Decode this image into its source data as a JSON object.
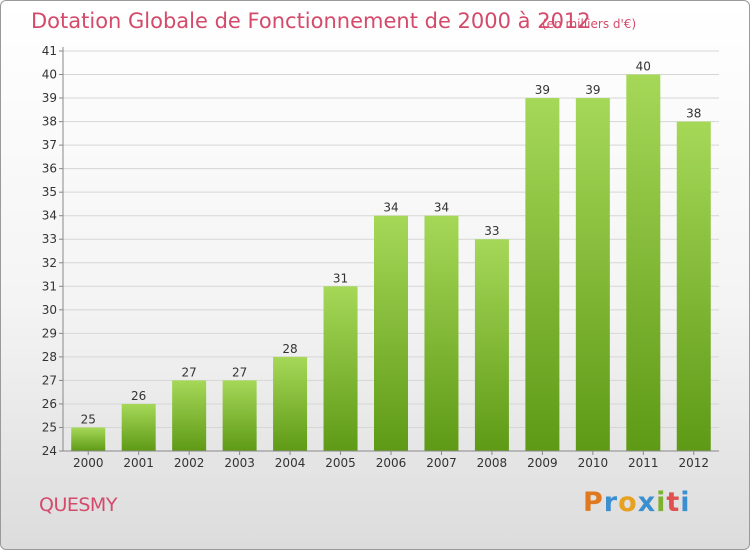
{
  "title": "Dotation Globale de Fonctionnement de 2000 à 2012",
  "unit_label": "(en milliers d'€)",
  "commune": "QUESMY",
  "logo": {
    "text": "Proxiti",
    "colors": [
      "#e07820",
      "#3a8fd0",
      "#e8a020",
      "#3a8fd0",
      "#7bb32e",
      "#e05050",
      "#3a8fd0"
    ]
  },
  "colors": {
    "bar_light": "#a6d858",
    "bar_dark": "#5e9a16",
    "title": "#d44a6a"
  },
  "chart_data": {
    "type": "bar",
    "categories": [
      "2000",
      "2001",
      "2002",
      "2003",
      "2004",
      "2005",
      "2006",
      "2007",
      "2008",
      "2009",
      "2010",
      "2011",
      "2012"
    ],
    "values": [
      25,
      26,
      27,
      27,
      28,
      31,
      34,
      34,
      33,
      39,
      39,
      40,
      38
    ],
    "ylim": [
      24,
      41
    ],
    "yticks": [
      24,
      25,
      26,
      27,
      28,
      29,
      30,
      31,
      32,
      33,
      34,
      35,
      36,
      37,
      38,
      39,
      40,
      41
    ],
    "grid": true,
    "data_labels": true
  }
}
